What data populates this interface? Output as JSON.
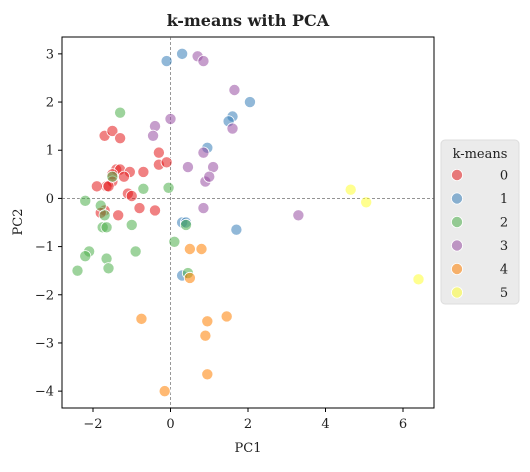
{
  "chart_data": {
    "type": "scatter",
    "title": "k-means with PCA",
    "xlabel": "PC1",
    "ylabel": "PC2",
    "xlim": [
      -2.8,
      6.8
    ],
    "ylim": [
      -4.35,
      3.35
    ],
    "xticks": [
      -2,
      0,
      2,
      4,
      6
    ],
    "yticks": [
      3,
      2,
      1,
      0,
      -1,
      -2,
      -3,
      -4
    ],
    "reference_lines": {
      "x": 0,
      "y": 0,
      "style": "dashed"
    },
    "legend": {
      "title": "k-means",
      "placement": "right"
    },
    "series": [
      {
        "name": "0",
        "color": "#e41a1c",
        "points": [
          [
            -1.7,
            1.3
          ],
          [
            -1.5,
            1.4
          ],
          [
            -1.3,
            1.25
          ],
          [
            -1.4,
            0.6
          ],
          [
            -1.3,
            0.6
          ],
          [
            -1.05,
            0.55
          ],
          [
            -0.7,
            0.55
          ],
          [
            -0.3,
            0.7
          ],
          [
            -0.3,
            0.95
          ],
          [
            -0.1,
            0.75
          ],
          [
            -1.5,
            0.5
          ],
          [
            -1.2,
            0.45
          ],
          [
            -1.5,
            0.35
          ],
          [
            -1.65,
            0.25
          ],
          [
            -1.6,
            0.25
          ],
          [
            -1.9,
            0.25
          ],
          [
            -1.1,
            0.1
          ],
          [
            -1.0,
            0.05
          ],
          [
            -1.7,
            -0.25
          ],
          [
            -1.8,
            -0.3
          ],
          [
            -1.35,
            -0.35
          ],
          [
            -0.8,
            -0.2
          ],
          [
            -0.4,
            -0.25
          ]
        ]
      },
      {
        "name": "1",
        "color": "#377eb8",
        "points": [
          [
            -0.1,
            2.85
          ],
          [
            0.3,
            3.0
          ],
          [
            2.05,
            2.0
          ],
          [
            1.6,
            1.7
          ],
          [
            1.5,
            1.6
          ],
          [
            0.95,
            1.05
          ],
          [
            0.3,
            -0.5
          ],
          [
            0.4,
            -0.5
          ],
          [
            1.7,
            -0.65
          ],
          [
            0.3,
            -1.6
          ]
        ]
      },
      {
        "name": "2",
        "color": "#4daf4a",
        "points": [
          [
            -1.3,
            1.78
          ],
          [
            -1.5,
            0.45
          ],
          [
            -0.7,
            0.2
          ],
          [
            -0.05,
            0.22
          ],
          [
            -2.2,
            -0.05
          ],
          [
            -1.8,
            -0.15
          ],
          [
            -1.7,
            -0.35
          ],
          [
            -1.75,
            -0.6
          ],
          [
            -1.65,
            -0.6
          ],
          [
            -1.0,
            -0.55
          ],
          [
            0.4,
            -0.55
          ],
          [
            0.1,
            -0.9
          ],
          [
            -0.9,
            -1.1
          ],
          [
            -2.1,
            -1.1
          ],
          [
            -2.2,
            -1.2
          ],
          [
            -1.65,
            -1.25
          ],
          [
            -1.6,
            -1.45
          ],
          [
            -2.4,
            -1.5
          ],
          [
            0.45,
            -1.55
          ]
        ]
      },
      {
        "name": "3",
        "color": "#984ea3",
        "points": [
          [
            0.7,
            2.95
          ],
          [
            0.85,
            2.85
          ],
          [
            1.65,
            2.25
          ],
          [
            1.6,
            1.45
          ],
          [
            -0.4,
            1.5
          ],
          [
            -0.45,
            1.3
          ],
          [
            0.0,
            1.65
          ],
          [
            0.85,
            0.95
          ],
          [
            1.1,
            0.65
          ],
          [
            0.45,
            0.65
          ],
          [
            0.9,
            0.35
          ],
          [
            1.0,
            0.45
          ],
          [
            0.85,
            -0.2
          ],
          [
            3.3,
            -0.35
          ]
        ]
      },
      {
        "name": "4",
        "color": "#ff7f00",
        "points": [
          [
            0.5,
            -1.05
          ],
          [
            0.8,
            -1.05
          ],
          [
            0.5,
            -1.65
          ],
          [
            -0.75,
            -2.5
          ],
          [
            0.95,
            -2.55
          ],
          [
            1.45,
            -2.45
          ],
          [
            0.9,
            -2.85
          ],
          [
            0.95,
            -3.65
          ],
          [
            -0.15,
            -4.0
          ]
        ]
      },
      {
        "name": "5",
        "color": "#ffff33",
        "points": [
          [
            4.65,
            0.18
          ],
          [
            5.05,
            -0.08
          ],
          [
            6.4,
            -1.68
          ]
        ]
      }
    ]
  }
}
